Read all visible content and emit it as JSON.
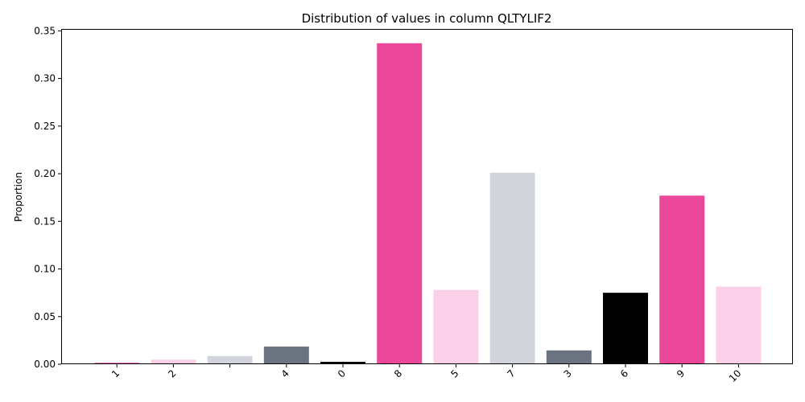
{
  "chart_data": {
    "type": "bar",
    "title": "Distribution of values in column QLTYLIF2",
    "xlabel": "",
    "ylabel": "Proportion",
    "ylim": [
      0,
      0.352
    ],
    "yticks": [
      0.0,
      0.05,
      0.1,
      0.15,
      0.2,
      0.25,
      0.3,
      0.35
    ],
    "categories": [
      "1",
      "2",
      "",
      "4",
      "0",
      "8",
      "5",
      "7",
      "3",
      "6",
      "9",
      "10"
    ],
    "values": [
      0.0015,
      0.0048,
      0.0085,
      0.0185,
      0.0025,
      0.337,
      0.078,
      0.201,
      0.0145,
      0.075,
      0.177,
      0.0815
    ],
    "colors": [
      "#ec4899",
      "#fbcfe8",
      "#d1d5db",
      "#6b7280",
      "#000000",
      "#ec4899",
      "#fbcfe8",
      "#d1d5db",
      "#6b7280",
      "#000000",
      "#ec4899",
      "#fbcfe8"
    ],
    "grid": false,
    "legend": "none"
  }
}
